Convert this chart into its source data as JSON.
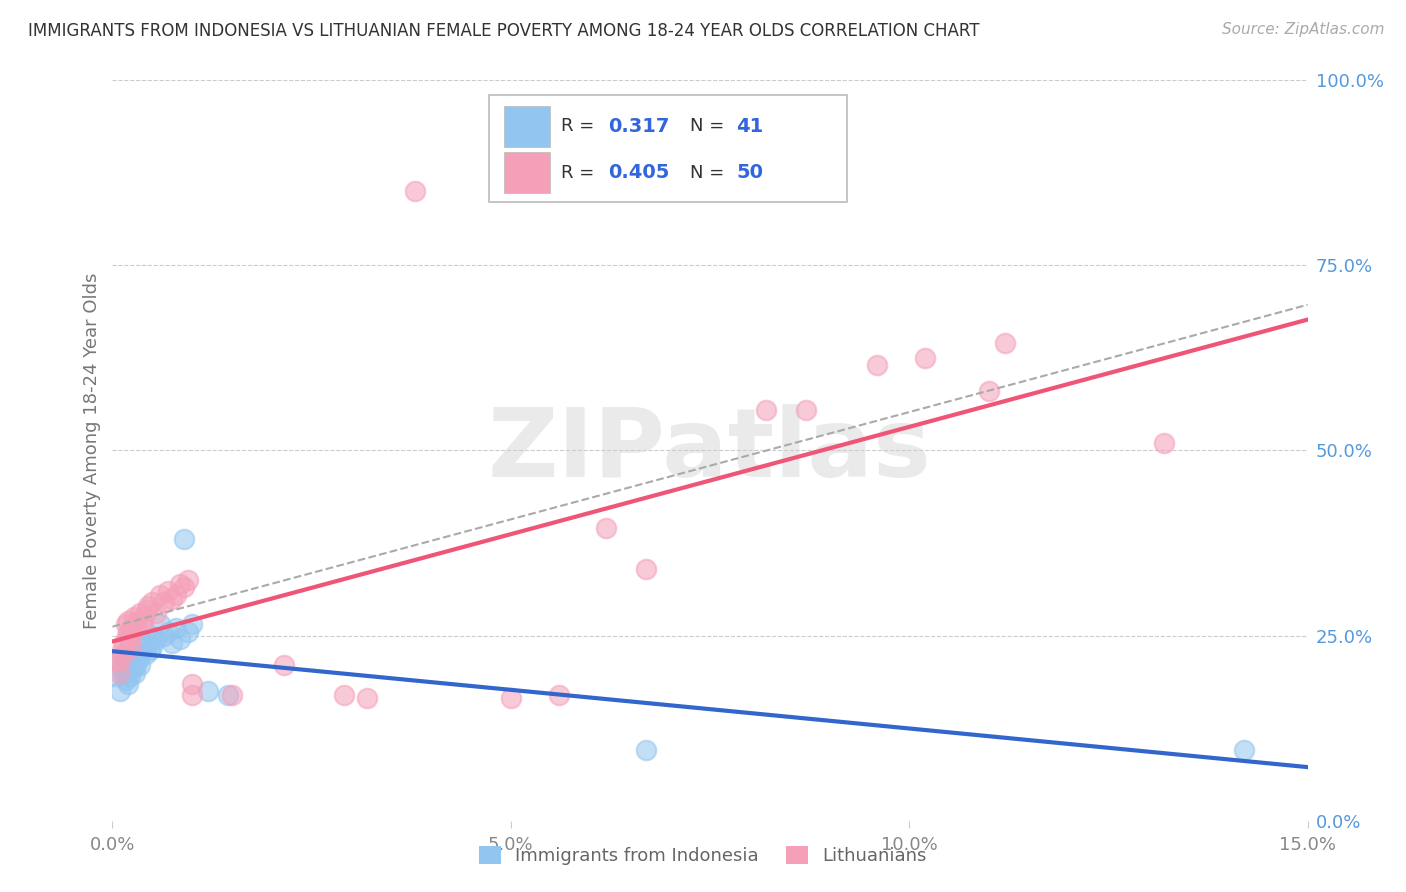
{
  "title": "IMMIGRANTS FROM INDONESIA VS LITHUANIAN FEMALE POVERTY AMONG 18-24 YEAR OLDS CORRELATION CHART",
  "source": "Source: ZipAtlas.com",
  "ylabel": "Female Poverty Among 18-24 Year Olds",
  "x_min": 0.0,
  "x_max": 0.15,
  "y_min": 0.0,
  "y_max": 1.0,
  "y_ticks": [
    0.0,
    0.25,
    0.5,
    0.75,
    1.0
  ],
  "y_tick_labels": [
    "0.0%",
    "25.0%",
    "50.0%",
    "75.0%",
    "100.0%"
  ],
  "x_ticks": [
    0.0,
    0.05,
    0.1,
    0.15
  ],
  "x_tick_labels": [
    "0.0%",
    "5.0%",
    "10.0%",
    "15.0%"
  ],
  "legend_labels": [
    "Immigrants from Indonesia",
    "Lithuanians"
  ],
  "legend_r_blue": "0.317",
  "legend_n_blue": "41",
  "legend_r_pink": "0.405",
  "legend_n_pink": "50",
  "blue_color": "#92C5F0",
  "pink_color": "#F4A0B8",
  "blue_line_color": "#3366CC",
  "pink_line_color": "#EE5577",
  "blue_scatter": [
    [
      0.0005,
      0.195
    ],
    [
      0.0008,
      0.215
    ],
    [
      0.001,
      0.175
    ],
    [
      0.0012,
      0.21
    ],
    [
      0.0013,
      0.2
    ],
    [
      0.0015,
      0.205
    ],
    [
      0.0017,
      0.19
    ],
    [
      0.0018,
      0.215
    ],
    [
      0.002,
      0.185
    ],
    [
      0.002,
      0.23
    ],
    [
      0.0022,
      0.195
    ],
    [
      0.0023,
      0.21
    ],
    [
      0.0025,
      0.205
    ],
    [
      0.0025,
      0.22
    ],
    [
      0.0027,
      0.215
    ],
    [
      0.0028,
      0.2
    ],
    [
      0.003,
      0.21
    ],
    [
      0.003,
      0.225
    ],
    [
      0.0033,
      0.22
    ],
    [
      0.0035,
      0.21
    ],
    [
      0.0038,
      0.24
    ],
    [
      0.004,
      0.235
    ],
    [
      0.0042,
      0.225
    ],
    [
      0.0045,
      0.24
    ],
    [
      0.0047,
      0.23
    ],
    [
      0.005,
      0.235
    ],
    [
      0.005,
      0.25
    ],
    [
      0.0055,
      0.245
    ],
    [
      0.006,
      0.265
    ],
    [
      0.0065,
      0.25
    ],
    [
      0.007,
      0.255
    ],
    [
      0.0075,
      0.24
    ],
    [
      0.008,
      0.26
    ],
    [
      0.0085,
      0.245
    ],
    [
      0.009,
      0.38
    ],
    [
      0.0095,
      0.255
    ],
    [
      0.01,
      0.265
    ],
    [
      0.012,
      0.175
    ],
    [
      0.0145,
      0.17
    ],
    [
      0.067,
      0.095
    ],
    [
      0.142,
      0.095
    ]
  ],
  "pink_scatter": [
    [
      0.0005,
      0.215
    ],
    [
      0.0008,
      0.2
    ],
    [
      0.001,
      0.215
    ],
    [
      0.0012,
      0.23
    ],
    [
      0.0013,
      0.225
    ],
    [
      0.0015,
      0.24
    ],
    [
      0.0017,
      0.265
    ],
    [
      0.0018,
      0.25
    ],
    [
      0.002,
      0.255
    ],
    [
      0.002,
      0.27
    ],
    [
      0.0022,
      0.245
    ],
    [
      0.0023,
      0.235
    ],
    [
      0.0025,
      0.26
    ],
    [
      0.0025,
      0.255
    ],
    [
      0.0027,
      0.275
    ],
    [
      0.003,
      0.26
    ],
    [
      0.0032,
      0.27
    ],
    [
      0.0035,
      0.28
    ],
    [
      0.0038,
      0.265
    ],
    [
      0.004,
      0.275
    ],
    [
      0.0043,
      0.285
    ],
    [
      0.0045,
      0.29
    ],
    [
      0.005,
      0.295
    ],
    [
      0.0055,
      0.28
    ],
    [
      0.006,
      0.305
    ],
    [
      0.0065,
      0.295
    ],
    [
      0.007,
      0.31
    ],
    [
      0.0075,
      0.3
    ],
    [
      0.008,
      0.305
    ],
    [
      0.0085,
      0.32
    ],
    [
      0.009,
      0.315
    ],
    [
      0.0095,
      0.325
    ],
    [
      0.01,
      0.17
    ],
    [
      0.01,
      0.185
    ],
    [
      0.015,
      0.17
    ],
    [
      0.0215,
      0.21
    ],
    [
      0.029,
      0.17
    ],
    [
      0.032,
      0.165
    ],
    [
      0.038,
      0.85
    ],
    [
      0.05,
      0.165
    ],
    [
      0.056,
      0.17
    ],
    [
      0.062,
      0.395
    ],
    [
      0.067,
      0.34
    ],
    [
      0.082,
      0.555
    ],
    [
      0.087,
      0.555
    ],
    [
      0.096,
      0.615
    ],
    [
      0.102,
      0.625
    ],
    [
      0.11,
      0.58
    ],
    [
      0.112,
      0.645
    ],
    [
      0.132,
      0.51
    ]
  ],
  "watermark": "ZIPatlas",
  "background_color": "#FFFFFF",
  "grid_color": "#CCCCCC",
  "title_color": "#333333",
  "right_tick_color": "#5599DD",
  "ylabel_color": "#777777"
}
